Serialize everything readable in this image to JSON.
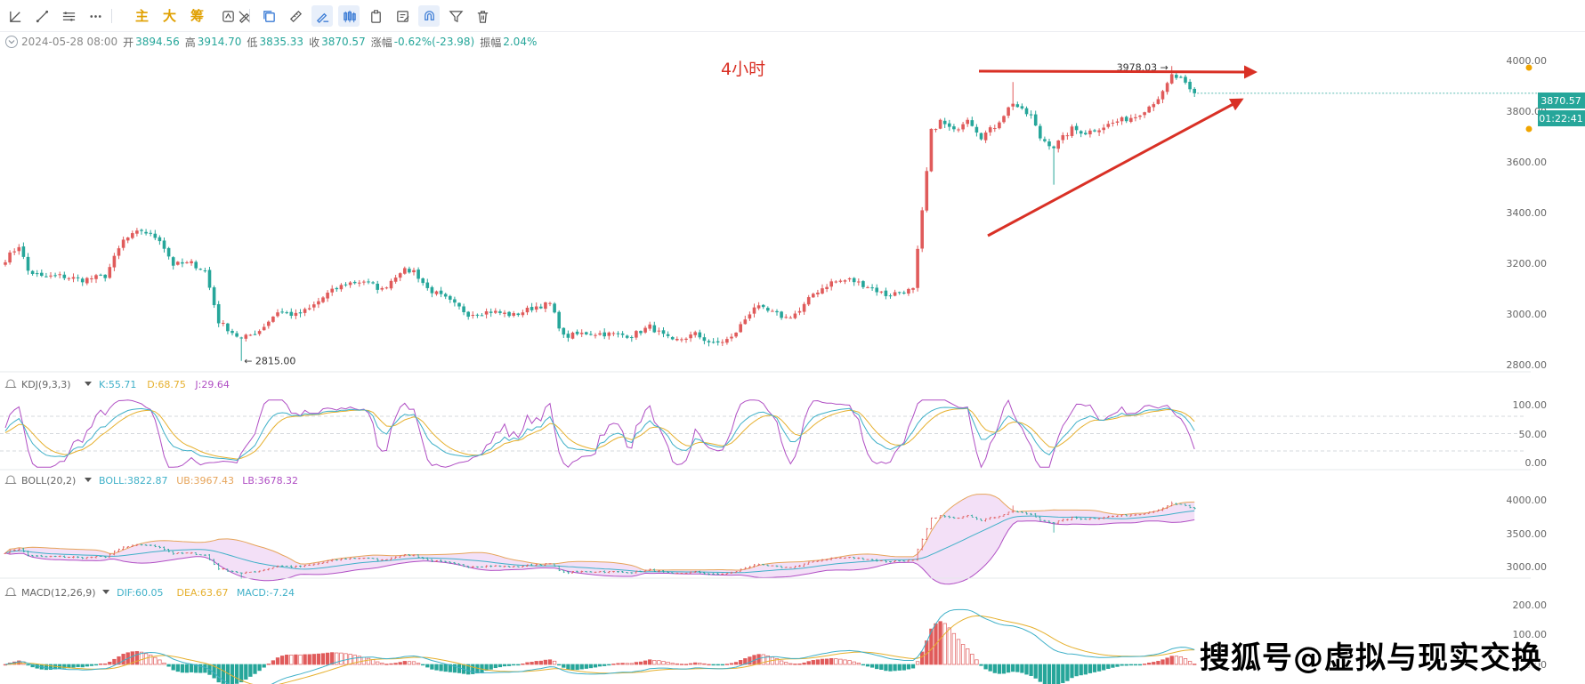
{
  "toolbar": {
    "tools": [
      {
        "name": "line-tool-icon"
      },
      {
        "name": "trend-line-icon"
      },
      {
        "name": "parallel-lines-icon"
      },
      {
        "name": "more-tools-icon"
      },
      {
        "name": "copy-icon"
      },
      {
        "name": "ruler-icon"
      },
      {
        "name": "draw-mode-icon"
      },
      {
        "name": "candlestick-icon"
      },
      {
        "name": "paste-icon"
      },
      {
        "name": "note-icon"
      },
      {
        "name": "magnet-icon"
      },
      {
        "name": "filter-icon"
      },
      {
        "name": "trash-icon"
      }
    ],
    "text_buttons": [
      "主",
      "大",
      "筹"
    ]
  },
  "ohlc": {
    "datetime": "2024-05-28 08:00",
    "open_label": "开",
    "open": "3894.56",
    "high_label": "高",
    "high": "3914.70",
    "low_label": "低",
    "low": "3835.33",
    "close_label": "收",
    "close": "3870.57",
    "change_label": "涨幅",
    "change": "-0.62%(-23.98)",
    "amplitude_label": "振幅",
    "amplitude": "2.04%"
  },
  "annotation": {
    "timeframe": "4小时",
    "high_marker": "3978.03",
    "low_marker": "2815.00"
  },
  "price_badge": {
    "price": "3870.57",
    "countdown": "01:22:41",
    "color": "#26a69a"
  },
  "watermark": "搜狐号@虚拟与现实交换",
  "colors": {
    "up": "#e05b5b",
    "down": "#26a69a",
    "arrow": "#d93025",
    "k": "#3fb0c8",
    "d": "#e6b02e",
    "j": "#b04fc4",
    "boll_mid": "#3fb0c8",
    "boll_ub": "#e6a45a",
    "boll_lb": "#b04fc4",
    "boll_fill": "#f0d8f5",
    "dif": "#3fb0c8",
    "dea": "#e6b02e"
  },
  "indicators": {
    "kdj": {
      "name": "KDJ(9,3,3)",
      "k": "K:55.71",
      "d": "D:68.75",
      "j": "J:29.64",
      "ticks": [
        "100.00",
        "50.00",
        "0.00"
      ]
    },
    "boll": {
      "name": "BOLL(20,2)",
      "mid": "BOLL:3822.87",
      "ub": "UB:3967.43",
      "lb": "LB:3678.32",
      "ticks": [
        "4000.00",
        "3500.00",
        "3000.00"
      ]
    },
    "macd": {
      "name": "MACD(12,26,9)",
      "dif": "DIF:60.05",
      "dea": "DEA:63.67",
      "macd": "MACD:-7.24",
      "ticks": [
        "200.00",
        "100.00",
        "0.00"
      ]
    }
  },
  "chart_data": {
    "type": "candlestick",
    "timeframe": "4小时",
    "ylim": [
      2700,
      4080
    ],
    "yticks": [
      "4000.00",
      "3800.00",
      "3600.00",
      "3400.00",
      "3200.00",
      "3000.00",
      "2800.00"
    ],
    "anchors": [
      [
        0,
        3215
      ],
      [
        3,
        3270
      ],
      [
        5,
        3170
      ],
      [
        8,
        3145
      ],
      [
        12,
        3150
      ],
      [
        17,
        3135
      ],
      [
        22,
        3150
      ],
      [
        26,
        3290
      ],
      [
        30,
        3330
      ],
      [
        34,
        3295
      ],
      [
        37,
        3195
      ],
      [
        41,
        3200
      ],
      [
        44,
        3170
      ],
      [
        47,
        2970
      ],
      [
        52,
        2900
      ],
      [
        56,
        2935
      ],
      [
        60,
        3010
      ],
      [
        64,
        2995
      ],
      [
        67,
        3020
      ],
      [
        71,
        3080
      ],
      [
        75,
        3120
      ],
      [
        79,
        3130
      ],
      [
        83,
        3095
      ],
      [
        87,
        3170
      ],
      [
        90,
        3170
      ],
      [
        93,
        3100
      ],
      [
        97,
        3060
      ],
      [
        102,
        3000
      ],
      [
        107,
        3010
      ],
      [
        112,
        2995
      ],
      [
        117,
        3030
      ],
      [
        120,
        3040
      ],
      [
        123,
        2910
      ],
      [
        128,
        2925
      ],
      [
        134,
        2920
      ],
      [
        138,
        2915
      ],
      [
        142,
        2950
      ],
      [
        147,
        2890
      ],
      [
        152,
        2920
      ],
      [
        156,
        2880
      ],
      [
        160,
        2905
      ],
      [
        165,
        3030
      ],
      [
        168,
        3010
      ],
      [
        172,
        2985
      ],
      [
        175,
        3010
      ],
      [
        178,
        3080
      ],
      [
        182,
        3125
      ],
      [
        186,
        3135
      ],
      [
        190,
        3110
      ],
      [
        194,
        3075
      ],
      [
        198,
        3090
      ],
      [
        200,
        3095
      ],
      [
        202,
        3400
      ],
      [
        204,
        3720
      ],
      [
        206,
        3760
      ],
      [
        209,
        3720
      ],
      [
        212,
        3775
      ],
      [
        215,
        3700
      ],
      [
        218,
        3740
      ],
      [
        222,
        3835
      ],
      [
        224,
        3800
      ],
      [
        226,
        3780
      ],
      [
        228,
        3695
      ],
      [
        231,
        3660
      ],
      [
        235,
        3730
      ],
      [
        238,
        3715
      ],
      [
        242,
        3740
      ],
      [
        245,
        3760
      ],
      [
        249,
        3780
      ],
      [
        252,
        3820
      ],
      [
        255,
        3870
      ],
      [
        257,
        3940
      ],
      [
        259,
        3925
      ],
      [
        261,
        3880
      ],
      [
        262,
        3870
      ]
    ],
    "count": 263,
    "low_point": 2815.0,
    "high_point": 3978.03,
    "last_close": 3870.57
  }
}
